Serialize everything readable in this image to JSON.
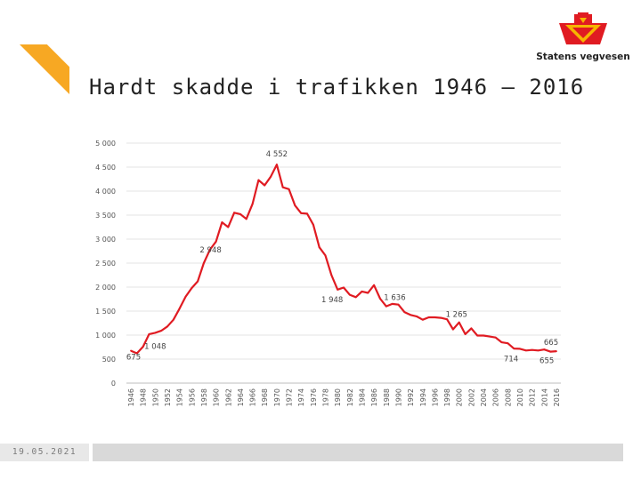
{
  "slide": {
    "title": "Hardt skadde i trafikken 1946 – 2016",
    "date": "19.05.2021",
    "logo_text": "Statens vegvesen",
    "accent_color": "#f7a823",
    "line_color": "#e01b22"
  },
  "chart_data": {
    "type": "line",
    "title": "Hardt skadde i trafikken 1946 – 2016",
    "xlabel": "",
    "ylabel": "",
    "ylim": [
      0,
      5000
    ],
    "yticks": [
      0,
      500,
      1000,
      1500,
      2000,
      2500,
      3000,
      3500,
      4000,
      4500,
      5000
    ],
    "ytick_labels": [
      "0",
      "500",
      "1 000",
      "1 500",
      "2 000",
      "2 500",
      "3 000",
      "3 500",
      "4 000",
      "4 500",
      "5 000"
    ],
    "xticks": [
      1946,
      1948,
      1950,
      1952,
      1954,
      1956,
      1958,
      1960,
      1962,
      1964,
      1966,
      1968,
      1970,
      1972,
      1974,
      1976,
      1978,
      1980,
      1982,
      1984,
      1986,
      1988,
      1990,
      1992,
      1994,
      1996,
      1998,
      2000,
      2002,
      2004,
      2006,
      2008,
      2010,
      2012,
      2014,
      2016
    ],
    "grid": true,
    "series": [
      {
        "name": "Hardt skadde",
        "x": [
          1946,
          1947,
          1948,
          1949,
          1950,
          1951,
          1952,
          1953,
          1954,
          1955,
          1956,
          1957,
          1958,
          1959,
          1960,
          1961,
          1962,
          1963,
          1964,
          1965,
          1966,
          1967,
          1968,
          1969,
          1970,
          1971,
          1972,
          1973,
          1974,
          1975,
          1976,
          1977,
          1978,
          1979,
          1980,
          1981,
          1982,
          1983,
          1984,
          1985,
          1986,
          1987,
          1988,
          1989,
          1990,
          1991,
          1992,
          1993,
          1994,
          1995,
          1996,
          1997,
          1998,
          1999,
          2000,
          2001,
          2002,
          2003,
          2004,
          2005,
          2006,
          2007,
          2008,
          2009,
          2010,
          2011,
          2012,
          2013,
          2014,
          2015,
          2016
        ],
        "values": [
          675,
          620,
          760,
          1020,
          1048,
          1090,
          1180,
          1320,
          1550,
          1800,
          1980,
          2120,
          2500,
          2780,
          2948,
          3350,
          3250,
          3550,
          3520,
          3420,
          3730,
          4230,
          4120,
          4300,
          4552,
          4080,
          4040,
          3700,
          3540,
          3530,
          3300,
          2830,
          2660,
          2250,
          1948,
          1990,
          1840,
          1790,
          1910,
          1880,
          2040,
          1760,
          1600,
          1650,
          1636,
          1480,
          1420,
          1390,
          1320,
          1370,
          1370,
          1360,
          1330,
          1120,
          1265,
          1020,
          1140,
          990,
          990,
          970,
          950,
          850,
          830,
          720,
          714,
          680,
          690,
          680,
          700,
          655,
          665
        ]
      }
    ],
    "annotations": [
      {
        "x": 1946,
        "y": 675,
        "text": "675"
      },
      {
        "x": 1950,
        "y": 1048,
        "text": "1 048"
      },
      {
        "x": 1960,
        "y": 2948,
        "text": "2 948"
      },
      {
        "x": 1970,
        "y": 4552,
        "text": "4 552"
      },
      {
        "x": 1980,
        "y": 1948,
        "text": "1 948"
      },
      {
        "x": 1990,
        "y": 1636,
        "text": "1 636"
      },
      {
        "x": 2000,
        "y": 1265,
        "text": "1 265"
      },
      {
        "x": 2010,
        "y": 714,
        "text": "714"
      },
      {
        "x": 2016,
        "y": 665,
        "text": "665"
      },
      {
        "x": 2015,
        "y": 655,
        "text": "655"
      }
    ]
  }
}
